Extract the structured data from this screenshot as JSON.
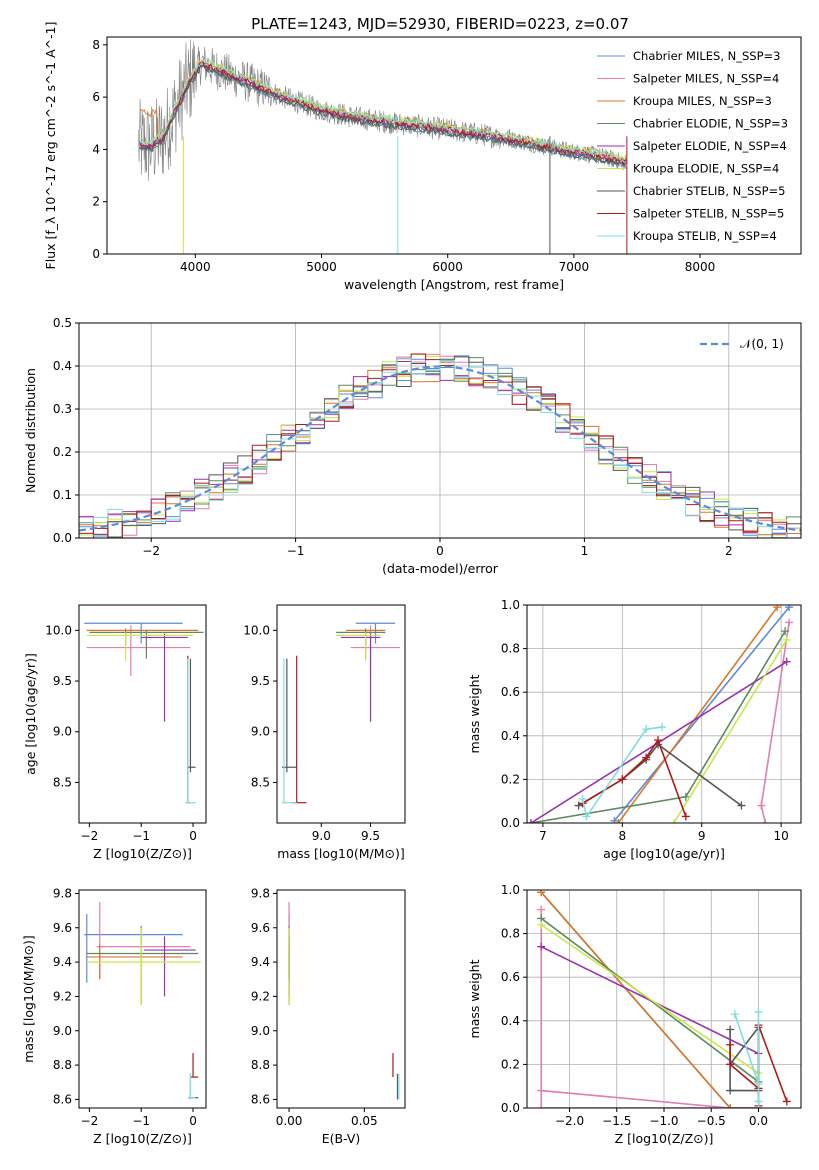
{
  "figure_title": "PLATE=1243, MJD=52930, FIBERID=0223, z=0.07",
  "series_colors": [
    {
      "name": "Chabrier MILES",
      "nssp": "3",
      "color": "#5b8bd9"
    },
    {
      "name": "Salpeter MILES",
      "nssp": "4",
      "color": "#e07fb0"
    },
    {
      "name": "Kroupa MILES",
      "nssp": "3",
      "color": "#d9772b"
    },
    {
      "name": "Chabrier ELODIE",
      "nssp": "3",
      "color": "#5e8a5e"
    },
    {
      "name": "Salpeter ELODIE",
      "nssp": "4",
      "color": "#9b30b0"
    },
    {
      "name": "Kroupa ELODIE",
      "nssp": "4",
      "color": "#c8e84a"
    },
    {
      "name": "Chabrier STELIB",
      "nssp": "5",
      "color": "#555555"
    },
    {
      "name": "Salpeter STELIB",
      "nssp": "5",
      "color": "#b01818"
    },
    {
      "name": "Kroupa STELIB",
      "nssp": "4",
      "color": "#7fdede"
    }
  ],
  "data_color": "#808080",
  "chart_data": [
    {
      "id": "spectrum",
      "type": "line",
      "xlabel": "wavelength [Angstrom, rest frame]",
      "ylabel": "Flux [f_λ 10^-17 erg cm^-2 s^-1 A^-1]",
      "xlim": [
        3300,
        8800
      ],
      "ylim": [
        0,
        8.3
      ],
      "xticks": [
        "4000",
        "5000",
        "6000",
        "7000",
        "8000"
      ],
      "yticks": [
        "0",
        "2",
        "4",
        "6",
        "8"
      ],
      "legend_location": "upper right",
      "legend": [
        "Chabrier MILES, N_SSP=3",
        "Salpeter MILES, N_SSP=4",
        "Kroupa MILES, N_SSP=3",
        "Chabrier ELODIE, N_SSP=3",
        "Salpeter ELODIE, N_SSP=4",
        "Kroupa ELODIE, N_SSP=4",
        "Chabrier STELIB, N_SSP=5",
        "Salpeter STELIB, N_SSP=5",
        "Kroupa STELIB, N_SSP=4"
      ],
      "continuum_model": {
        "x": [
          3550,
          3650,
          3750,
          3850,
          3950,
          4050,
          4150,
          4300,
          4500,
          4700,
          5000,
          5300,
          5600,
          6000,
          6300,
          6600,
          6900,
          7200,
          7400
        ],
        "y": [
          4.2,
          4.15,
          4.5,
          5.6,
          6.6,
          7.3,
          7.1,
          6.8,
          6.4,
          6.0,
          5.5,
          5.2,
          5.0,
          4.75,
          4.55,
          4.3,
          4.0,
          3.75,
          3.5
        ]
      }
    },
    {
      "id": "residuals",
      "type": "line",
      "xlabel": "(data-model)/error",
      "ylabel": "Normed distribution",
      "xlim": [
        -2.5,
        2.5
      ],
      "ylim": [
        0,
        0.5
      ],
      "xticks": [
        "−2",
        "−1",
        "0",
        "1",
        "2"
      ],
      "yticks": [
        "0.0",
        "0.1",
        "0.2",
        "0.3",
        "0.4",
        "0.5"
      ],
      "legend": [
        "𝒩(0, 1)"
      ],
      "legend_location": "upper right",
      "gaussian": {
        "mean": 0,
        "sigma": 1,
        "style": "dashed",
        "color": "#5b8bd9"
      },
      "bins": {
        "start": -2.5,
        "width": 0.1,
        "count": 50
      }
    },
    {
      "id": "age_vs_Z",
      "type": "scatter",
      "xlabel": "Z [log10(Z/Z⊙)]",
      "ylabel": "age [log10(age/yr)]",
      "xlim": [
        -2.2,
        0.25
      ],
      "ylim": [
        8.1,
        10.25
      ],
      "xticks": [
        "−2",
        "−1",
        "0"
      ],
      "yticks": [
        "8.5",
        "9.0",
        "9.5",
        "10.0"
      ],
      "points": [
        {
          "s": 0,
          "x": -1.0,
          "y": 10.07,
          "xlo": -2.1,
          "xhi": -0.2,
          "ylo": 9.87,
          "yhi": 10.07
        },
        {
          "s": 1,
          "x": -1.2,
          "y": 9.83,
          "xlo": -2.05,
          "xhi": -0.05,
          "ylo": 9.55,
          "yhi": 10.05
        },
        {
          "s": 2,
          "x": -1.3,
          "y": 10.0,
          "xlo": -2.05,
          "xhi": 0.1,
          "ylo": 9.85,
          "yhi": 10.02
        },
        {
          "s": 3,
          "x": -0.9,
          "y": 9.98,
          "xlo": -2.0,
          "xhi": 0.2,
          "ylo": 9.72,
          "yhi": 10.0
        },
        {
          "s": 4,
          "x": -0.55,
          "y": 9.93,
          "xlo": -1.0,
          "xhi": -0.1,
          "ylo": 9.1,
          "yhi": 9.97
        },
        {
          "s": 5,
          "x": -1.3,
          "y": 9.95,
          "xlo": -2.05,
          "xhi": 0.0,
          "ylo": 9.7,
          "yhi": 9.98
        },
        {
          "s": 6,
          "x": -0.05,
          "y": 8.65,
          "xlo": -0.1,
          "xhi": 0.05,
          "ylo": 8.6,
          "yhi": 9.72
        },
        {
          "s": 7,
          "x": -0.1,
          "y": 8.3,
          "xlo": -0.12,
          "xhi": -0.05,
          "ylo": 8.3,
          "yhi": 9.75
        },
        {
          "s": 8,
          "x": -0.1,
          "y": 8.3,
          "xlo": -0.15,
          "xhi": 0.05,
          "ylo": 8.3,
          "yhi": 9.72
        }
      ]
    },
    {
      "id": "age_vs_mass",
      "type": "scatter",
      "xlabel": "mass [log10(M/M⊙)]",
      "ylabel": "",
      "xlim": [
        8.55,
        9.85
      ],
      "ylim": [
        8.1,
        10.25
      ],
      "xticks": [
        "9.0",
        "9.5"
      ],
      "yticks": [
        "8.5",
        "9.0",
        "9.5",
        "10.0"
      ],
      "points": [
        {
          "s": 0,
          "x": 9.55,
          "y": 10.07,
          "xlo": 9.35,
          "xhi": 9.75,
          "ylo": 9.87,
          "yhi": 10.07
        },
        {
          "s": 1,
          "x": 9.5,
          "y": 9.83,
          "xlo": 9.3,
          "xhi": 9.8,
          "ylo": 9.55,
          "yhi": 10.05
        },
        {
          "s": 2,
          "x": 9.45,
          "y": 10.0,
          "xlo": 9.25,
          "xhi": 9.65,
          "ylo": 9.85,
          "yhi": 10.02
        },
        {
          "s": 3,
          "x": 9.45,
          "y": 9.98,
          "xlo": 9.15,
          "xhi": 9.65,
          "ylo": 9.72,
          "yhi": 10.0
        },
        {
          "s": 4,
          "x": 9.5,
          "y": 9.93,
          "xlo": 9.2,
          "xhi": 9.6,
          "ylo": 9.1,
          "yhi": 9.97
        },
        {
          "s": 5,
          "x": 9.45,
          "y": 9.95,
          "xlo": 9.15,
          "xhi": 9.6,
          "ylo": 9.7,
          "yhi": 9.98
        },
        {
          "s": 6,
          "x": 8.65,
          "y": 8.65,
          "xlo": 8.6,
          "xhi": 8.75,
          "ylo": 8.6,
          "yhi": 9.72
        },
        {
          "s": 7,
          "x": 8.75,
          "y": 8.3,
          "xlo": 8.7,
          "xhi": 8.85,
          "ylo": 8.3,
          "yhi": 9.75
        },
        {
          "s": 8,
          "x": 8.62,
          "y": 8.3,
          "xlo": 8.6,
          "xhi": 8.75,
          "ylo": 8.3,
          "yhi": 9.72
        }
      ]
    },
    {
      "id": "weight_vs_age",
      "type": "line",
      "xlabel": "age [log10(age/yr)]",
      "ylabel": "mass weight",
      "xlim": [
        6.8,
        10.25
      ],
      "ylim": [
        0,
        1.0
      ],
      "xticks": [
        "7",
        "8",
        "9",
        "10"
      ],
      "yticks": [
        "0.0",
        "0.2",
        "0.4",
        "0.6",
        "0.8",
        "1.0"
      ],
      "series": [
        {
          "s": 0,
          "x": [
            7.9,
            10.1
          ],
          "y": [
            0.01,
            0.99
          ]
        },
        {
          "s": 1,
          "x": [
            9.8,
            9.75,
            10.1
          ],
          "y": [
            0.0,
            0.08,
            0.92
          ]
        },
        {
          "s": 2,
          "x": [
            7.95,
            9.95
          ],
          "y": [
            0.0,
            0.99
          ]
        },
        {
          "s": 3,
          "x": [
            6.85,
            8.8,
            10.05
          ],
          "y": [
            0.0,
            0.12,
            0.88
          ]
        },
        {
          "s": 4,
          "x": [
            6.85,
            10.07
          ],
          "y": [
            0.0,
            0.74
          ]
        },
        {
          "s": 5,
          "x": [
            8.65,
            10.07
          ],
          "y": [
            0.0,
            0.84
          ]
        },
        {
          "s": 6,
          "x": [
            7.45,
            8.0,
            8.3,
            8.45,
            9.5
          ],
          "y": [
            0.08,
            0.2,
            0.29,
            0.36,
            0.08
          ]
        },
        {
          "s": 7,
          "x": [
            7.5,
            8.0,
            8.3,
            8.45,
            8.8
          ],
          "y": [
            0.09,
            0.2,
            0.3,
            0.38,
            0.03
          ]
        },
        {
          "s": 8,
          "x": [
            7.5,
            7.55,
            8.3,
            8.5
          ],
          "y": [
            0.11,
            0.03,
            0.43,
            0.44
          ]
        }
      ]
    },
    {
      "id": "mass_vs_Z",
      "type": "scatter",
      "xlabel": "Z [log10(Z/Z⊙)]",
      "ylabel": "mass [log10(M/M⊙)]",
      "xlim": [
        -2.2,
        0.25
      ],
      "ylim": [
        8.55,
        9.82
      ],
      "xticks": [
        "−2",
        "−1",
        "0"
      ],
      "yticks": [
        "8.6",
        "8.8",
        "9.0",
        "9.2",
        "9.4",
        "9.6",
        "9.8"
      ],
      "points": [
        {
          "s": 0,
          "x": -2.05,
          "y": 9.56,
          "xlo": -2.1,
          "xhi": -0.2,
          "ylo": 9.28,
          "yhi": 9.68
        },
        {
          "s": 1,
          "x": -1.8,
          "y": 9.49,
          "xlo": -1.85,
          "xhi": -0.05,
          "ylo": 9.3,
          "yhi": 9.75
        },
        {
          "s": 2,
          "x": -1.8,
          "y": 9.43,
          "xlo": -2.05,
          "xhi": -0.2,
          "ylo": 9.3,
          "yhi": 9.5
        },
        {
          "s": 3,
          "x": -1.0,
          "y": 9.45,
          "xlo": -2.05,
          "xhi": 0.1,
          "ylo": 9.15,
          "yhi": 9.61
        },
        {
          "s": 4,
          "x": -0.55,
          "y": 9.47,
          "xlo": -0.95,
          "xhi": 0.05,
          "ylo": 9.2,
          "yhi": 9.55
        },
        {
          "s": 5,
          "x": -1.0,
          "y": 9.4,
          "xlo": -2.05,
          "xhi": 0.15,
          "ylo": 9.15,
          "yhi": 9.6
        },
        {
          "s": 6,
          "x": -0.05,
          "y": 8.61,
          "xlo": -0.1,
          "xhi": 0.1,
          "ylo": 8.6,
          "yhi": 8.75
        },
        {
          "s": 7,
          "x": 0.0,
          "y": 8.73,
          "xlo": -0.05,
          "xhi": 0.1,
          "ylo": 8.73,
          "yhi": 8.87
        },
        {
          "s": 8,
          "x": -0.05,
          "y": 8.61,
          "xlo": -0.1,
          "xhi": 0.05,
          "ylo": 8.6,
          "yhi": 8.75
        }
      ]
    },
    {
      "id": "mass_vs_ebv",
      "type": "scatter",
      "xlabel": "E(B-V)",
      "ylabel": "",
      "xlim": [
        -0.008,
        0.077
      ],
      "ylim": [
        8.55,
        9.82
      ],
      "xticks": [
        "0.00",
        "0.05"
      ],
      "yticks": [
        "8.6",
        "8.8",
        "9.0",
        "9.2",
        "9.4",
        "9.6",
        "9.8"
      ],
      "points": [
        {
          "s": 0,
          "x": 0.0,
          "y": 9.56,
          "ylo": 9.28,
          "yhi": 9.68
        },
        {
          "s": 1,
          "x": 0.0,
          "y": 9.49,
          "ylo": 9.3,
          "yhi": 9.75
        },
        {
          "s": 2,
          "x": 0.0,
          "y": 9.43,
          "ylo": 9.3,
          "yhi": 9.5
        },
        {
          "s": 3,
          "x": 0.0,
          "y": 9.45,
          "ylo": 9.15,
          "yhi": 9.61
        },
        {
          "s": 4,
          "x": 0.0,
          "y": 9.47,
          "ylo": 9.2,
          "yhi": 9.55
        },
        {
          "s": 5,
          "x": 0.0,
          "y": 9.4,
          "ylo": 9.15,
          "yhi": 9.6
        },
        {
          "s": 6,
          "x": 0.072,
          "y": 8.61,
          "ylo": 8.6,
          "yhi": 8.75
        },
        {
          "s": 7,
          "x": 0.069,
          "y": 8.73,
          "ylo": 8.73,
          "yhi": 8.87
        },
        {
          "s": 8,
          "x": 0.073,
          "y": 8.61,
          "ylo": 8.6,
          "yhi": 8.75
        }
      ]
    },
    {
      "id": "weight_vs_Z",
      "type": "line",
      "xlabel": "Z [log10(Z/Z⊙)]",
      "ylabel": "mass weight",
      "xlim": [
        -2.45,
        0.45
      ],
      "ylim": [
        0,
        1.0
      ],
      "xticks": [
        "−2.0",
        "−1.5",
        "−1.0",
        "−0.5",
        "0.0"
      ],
      "yticks": [
        "0.0",
        "0.2",
        "0.4",
        "0.6",
        "0.8",
        "1.0"
      ],
      "series": [
        {
          "s": 0,
          "x": [
            -2.3,
            -0.3,
            0.0
          ],
          "y": [
            0.99,
            0.0,
            0.0
          ]
        },
        {
          "s": 1,
          "x": [
            -0.3,
            -2.3,
            -2.3,
            -2.3,
            0.0
          ],
          "y": [
            0.0,
            0.08,
            0.91,
            0.0,
            0.0
          ]
        },
        {
          "s": 2,
          "x": [
            -2.3,
            -0.3,
            0.0
          ],
          "y": [
            0.99,
            0.0,
            0.0
          ]
        },
        {
          "s": 3,
          "x": [
            -2.3,
            0.0,
            0.0
          ],
          "y": [
            0.87,
            0.12,
            0.01
          ]
        },
        {
          "s": 4,
          "x": [
            -2.3,
            0.0,
            0.0
          ],
          "y": [
            0.74,
            0.25,
            0.01
          ]
        },
        {
          "s": 5,
          "x": [
            -2.3,
            0.0,
            0.0
          ],
          "y": [
            0.84,
            0.16,
            0.0
          ]
        },
        {
          "s": 6,
          "x": [
            -0.3,
            -0.3,
            0.0,
            0.0,
            -0.3
          ],
          "y": [
            0.36,
            0.08,
            0.08,
            0.37,
            0.2
          ]
        },
        {
          "s": 7,
          "x": [
            -0.3,
            -0.3,
            0.0,
            0.0,
            0.3
          ],
          "y": [
            0.29,
            0.2,
            0.09,
            0.38,
            0.03
          ]
        },
        {
          "s": 8,
          "x": [
            -0.25,
            0.0,
            0.0,
            0.0
          ],
          "y": [
            0.43,
            0.11,
            0.44,
            0.03
          ]
        }
      ]
    }
  ]
}
